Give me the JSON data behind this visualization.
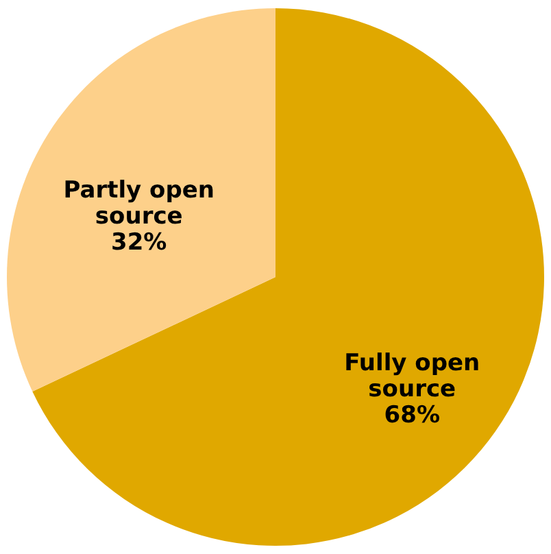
{
  "chart_data": {
    "type": "pie",
    "categories": [
      "Fully open source",
      "Partly open source"
    ],
    "values": [
      68,
      32
    ],
    "colors": [
      "#e0a800",
      "#fdd08a"
    ],
    "value_labels": [
      "68%",
      "32%"
    ],
    "legend": false
  }
}
